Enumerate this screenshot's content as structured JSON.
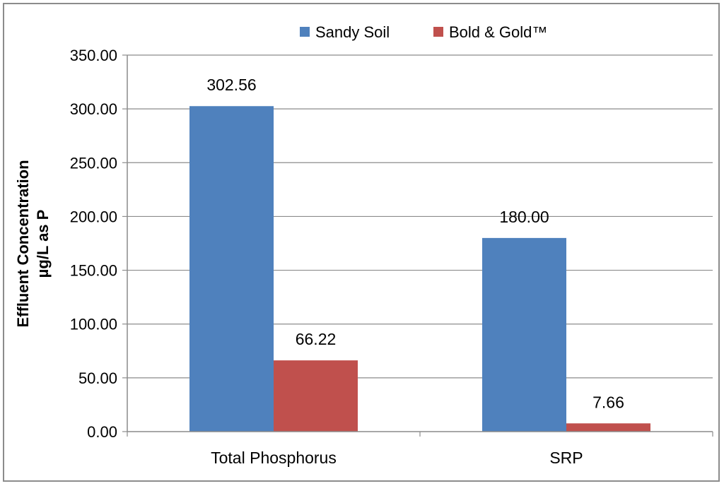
{
  "chart_data": {
    "type": "bar",
    "title": "",
    "categories": [
      "Total Phosphorus",
      "SRP"
    ],
    "series": [
      {
        "name": "Sandy Soil",
        "color": "#4f81bd",
        "values": [
          302.56,
          180.0
        ],
        "labels": [
          "302.56",
          "180.00"
        ]
      },
      {
        "name": "Bold & Gold™",
        "color": "#c0504d",
        "values": [
          66.22,
          7.66
        ],
        "labels": [
          "66.22",
          "7.66"
        ]
      }
    ],
    "ylabel_line1": "Effluent Concentration",
    "ylabel_line2": "µg/L as P",
    "xlabel": "",
    "ylim": [
      0,
      350
    ],
    "yticks": [
      0,
      50,
      100,
      150,
      200,
      250,
      300,
      350
    ],
    "ytick_labels": [
      "0.00",
      "50.00",
      "100.00",
      "150.00",
      "200.00",
      "250.00",
      "300.00",
      "350.00"
    ],
    "grid": true,
    "legend_position": "top"
  }
}
